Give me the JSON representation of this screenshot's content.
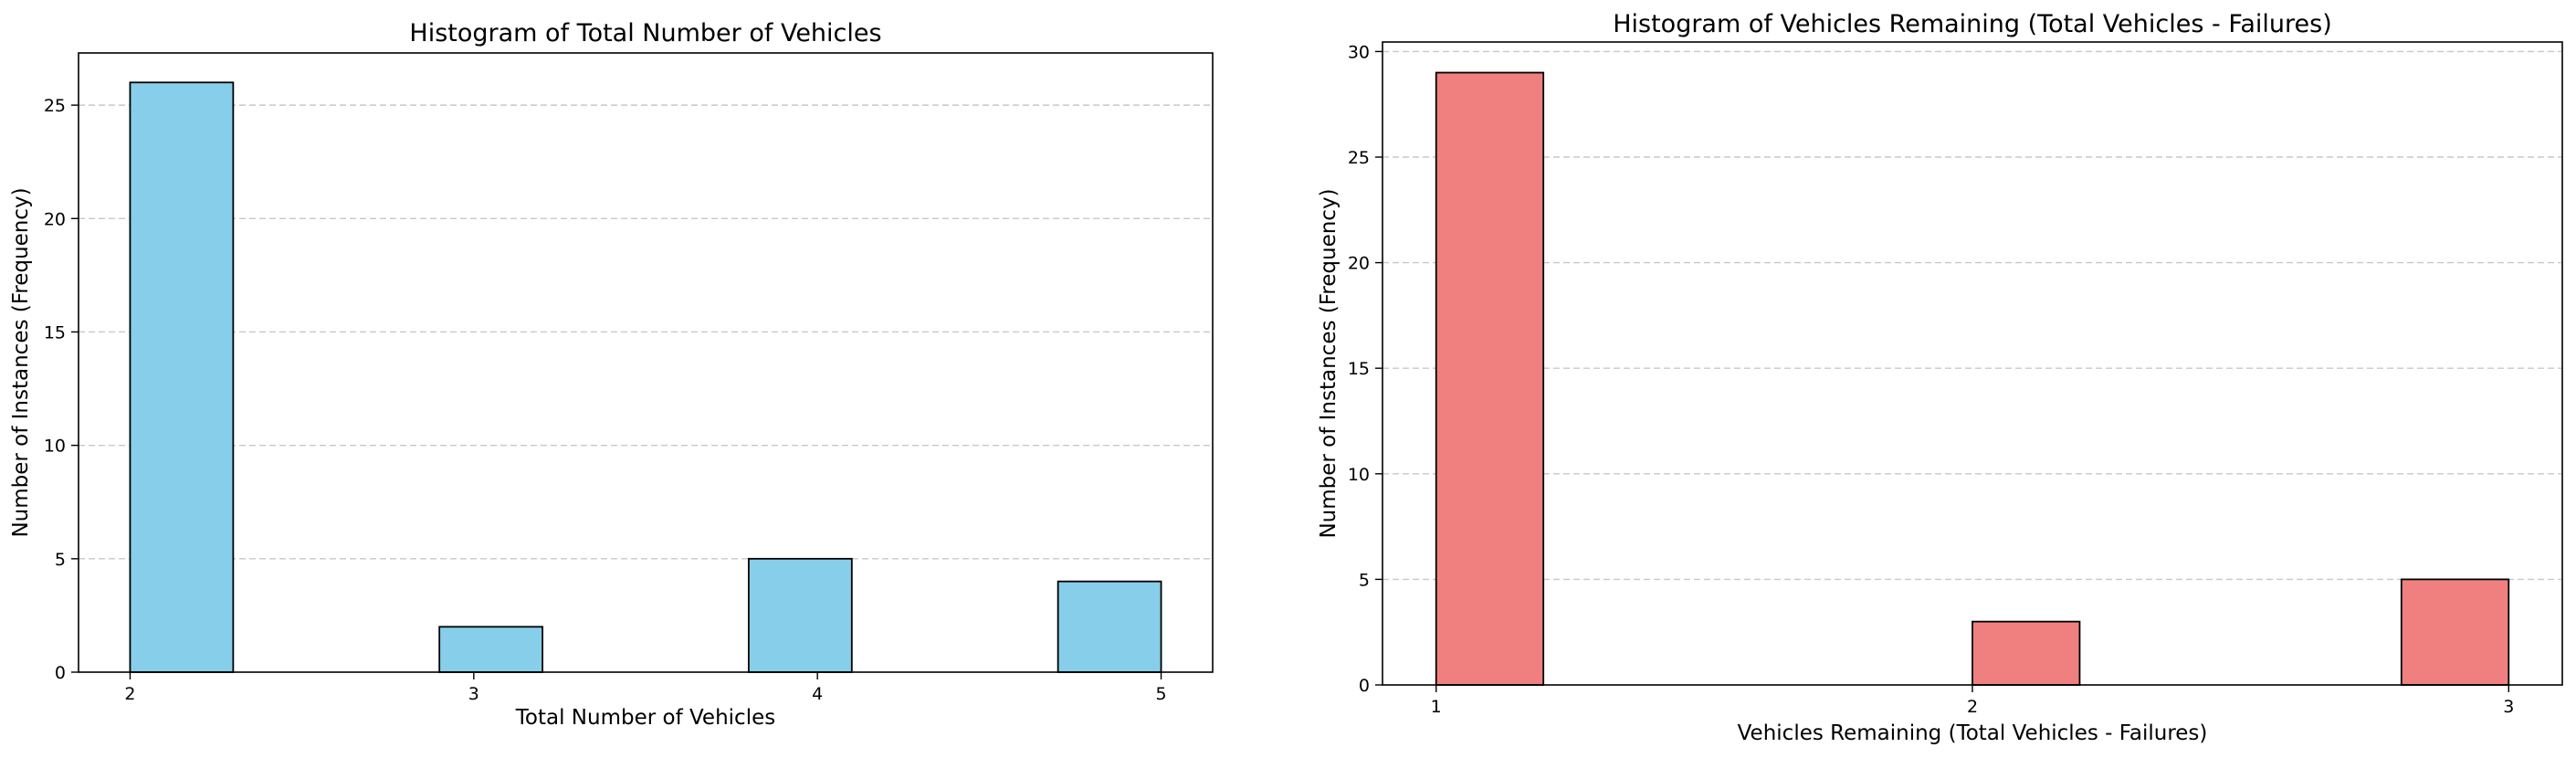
{
  "chart_data": [
    {
      "type": "bar",
      "title": "Histogram of Total Number of Vehicles",
      "xlabel": "Total Number of Vehicles",
      "ylabel": "Number of Instances (Frequency)",
      "x_ticks": [
        2,
        3,
        4,
        5
      ],
      "y_ticks": [
        0,
        5,
        10,
        15,
        20,
        25
      ],
      "xlim": [
        1.85,
        5.15
      ],
      "ylim": [
        0,
        27.3
      ],
      "bins": [
        {
          "start": 2.0,
          "end": 2.3,
          "value": 26
        },
        {
          "start": 2.9,
          "end": 3.2,
          "value": 2
        },
        {
          "start": 3.8,
          "end": 4.1,
          "value": 5
        },
        {
          "start": 4.7,
          "end": 5.0,
          "value": 4
        }
      ],
      "bar_color": "#87CEEB",
      "edge_color": "#000000",
      "grid": "y-dashed"
    },
    {
      "type": "bar",
      "title": "Histogram of Vehicles Remaining (Total Vehicles - Failures)",
      "xlabel": "Vehicles Remaining (Total Vehicles - Failures)",
      "ylabel": "Number of Instances (Frequency)",
      "x_ticks": [
        1,
        2,
        3
      ],
      "y_ticks": [
        0,
        5,
        10,
        15,
        20,
        25,
        30
      ],
      "xlim": [
        0.9,
        3.1
      ],
      "ylim": [
        0,
        30.45
      ],
      "bins": [
        {
          "start": 1.0,
          "end": 1.2,
          "value": 29
        },
        {
          "start": 2.0,
          "end": 2.2,
          "value": 3
        },
        {
          "start": 2.8,
          "end": 3.0,
          "value": 5
        }
      ],
      "bar_color": "#F08080",
      "edge_color": "#000000",
      "grid": "y-dashed"
    }
  ]
}
